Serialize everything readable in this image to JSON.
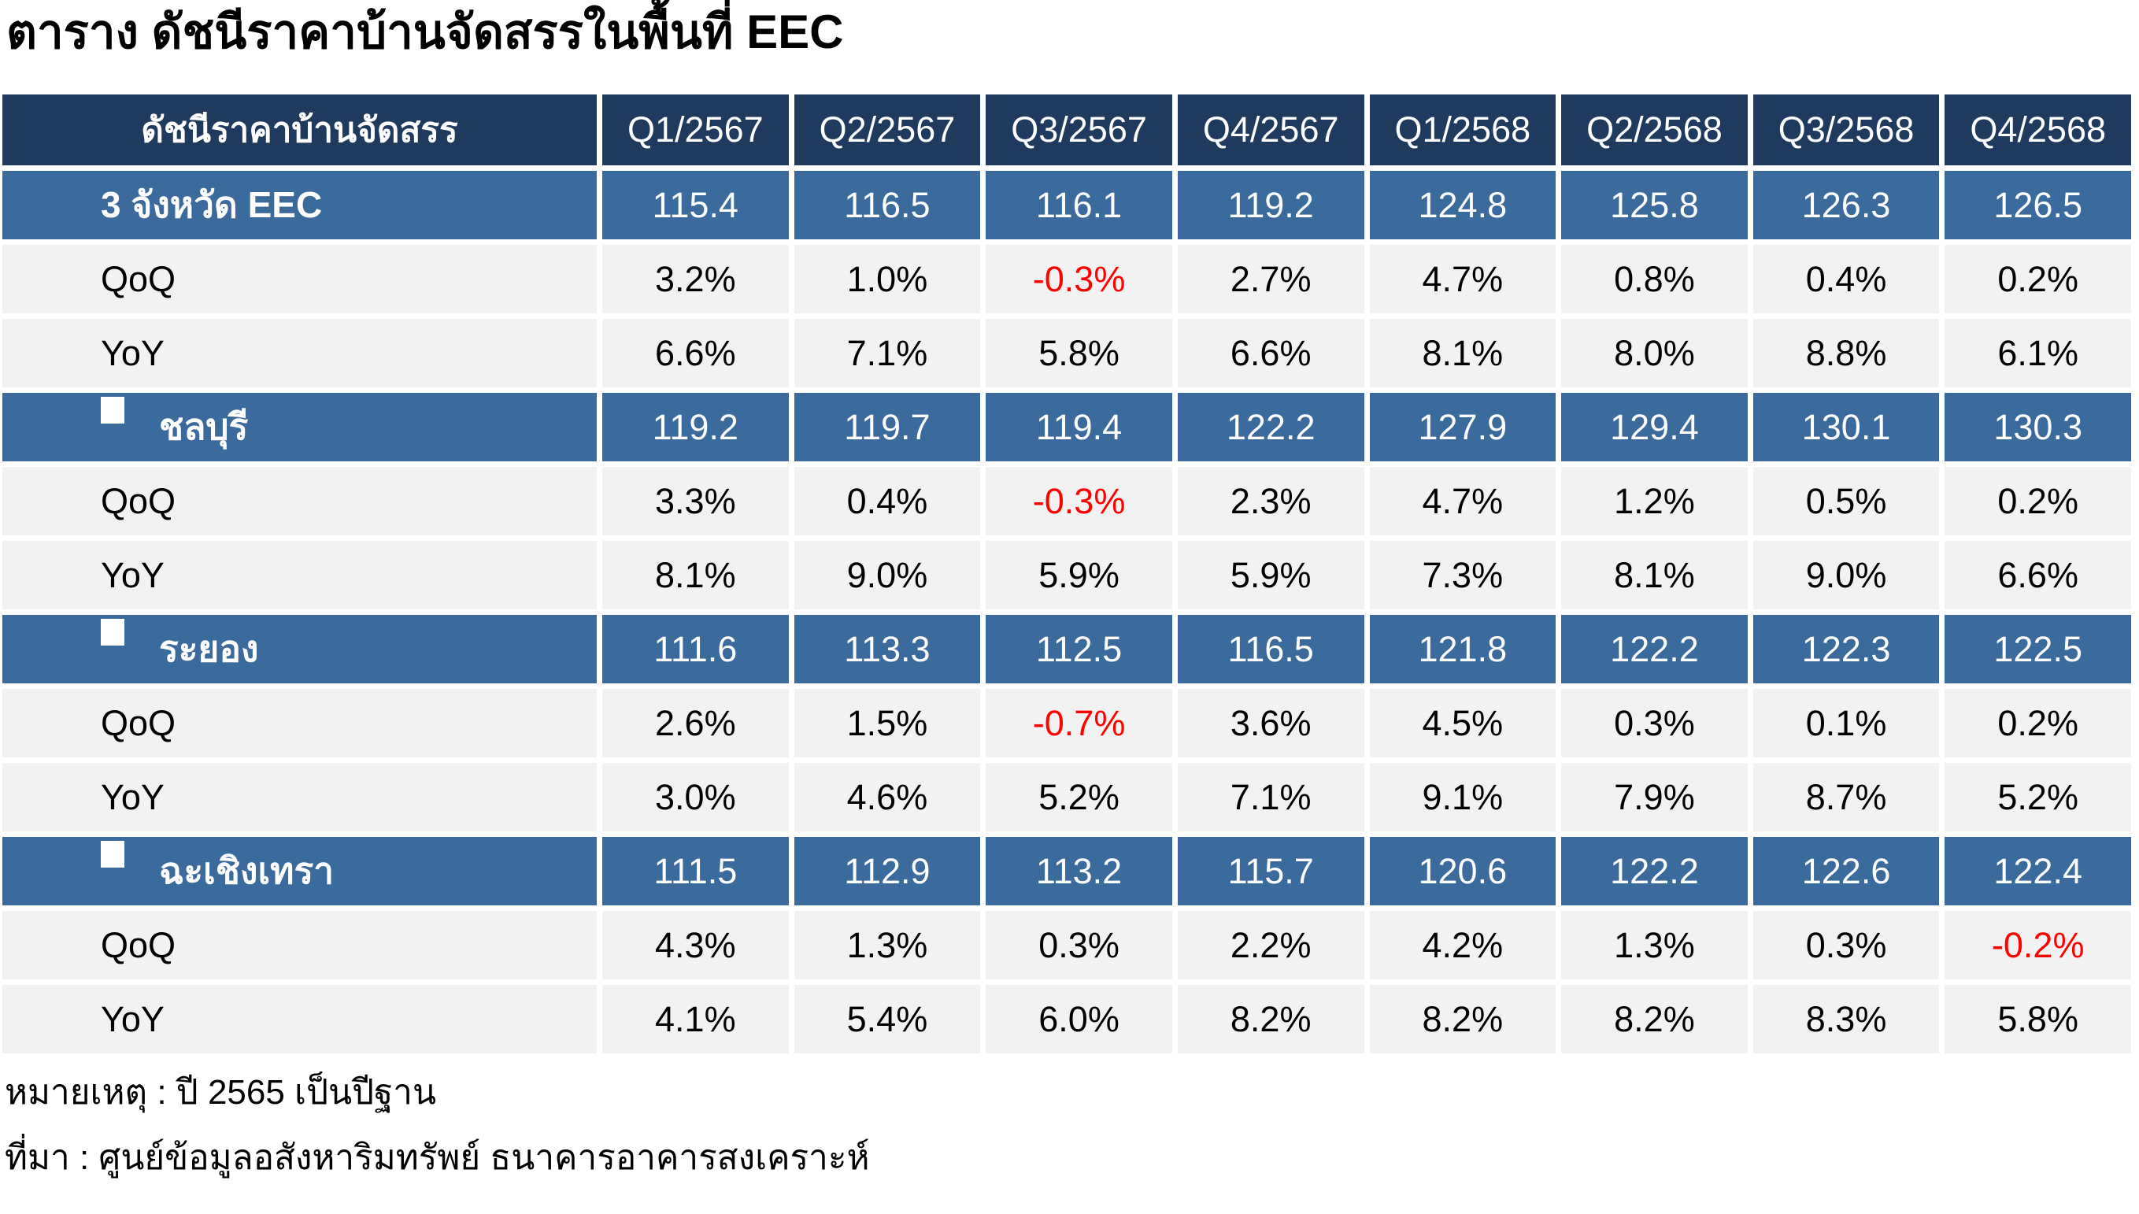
{
  "title": "ตาราง  ดัชนีราคาบ้านจัดสรรในพื้นที่ EEC",
  "table": {
    "header_label": "ดัชนีราคาบ้านจัดสรร",
    "quarters": [
      "Q1/2567",
      "Q2/2567",
      "Q3/2567",
      "Q4/2567",
      "Q1/2568",
      "Q2/2568",
      "Q3/2568",
      "Q4/2568"
    ],
    "qoq_label": "QoQ",
    "yoy_label": "YoY",
    "groups": [
      {
        "name": "3 จังหวัด EEC",
        "bullet": false,
        "index": [
          "115.4",
          "116.5",
          "116.1",
          "119.2",
          "124.8",
          "125.8",
          "126.3",
          "126.5"
        ],
        "qoq": [
          "3.2%",
          "1.0%",
          "-0.3%",
          "2.7%",
          "4.7%",
          "0.8%",
          "0.4%",
          "0.2%"
        ],
        "yoy": [
          "6.6%",
          "7.1%",
          "5.8%",
          "6.6%",
          "8.1%",
          "8.0%",
          "8.8%",
          "6.1%"
        ]
      },
      {
        "name": "ชลบุรี",
        "bullet": true,
        "index": [
          "119.2",
          "119.7",
          "119.4",
          "122.2",
          "127.9",
          "129.4",
          "130.1",
          "130.3"
        ],
        "qoq": [
          "3.3%",
          "0.4%",
          "-0.3%",
          "2.3%",
          "4.7%",
          "1.2%",
          "0.5%",
          "0.2%"
        ],
        "yoy": [
          "8.1%",
          "9.0%",
          "5.9%",
          "5.9%",
          "7.3%",
          "8.1%",
          "9.0%",
          "6.6%"
        ]
      },
      {
        "name": "ระยอง",
        "bullet": true,
        "index": [
          "111.6",
          "113.3",
          "112.5",
          "116.5",
          "121.8",
          "122.2",
          "122.3",
          "122.5"
        ],
        "qoq": [
          "2.6%",
          "1.5%",
          "-0.7%",
          "3.6%",
          "4.5%",
          "0.3%",
          "0.1%",
          "0.2%"
        ],
        "yoy": [
          "3.0%",
          "4.6%",
          "5.2%",
          "7.1%",
          "9.1%",
          "7.9%",
          "8.7%",
          "5.2%"
        ]
      },
      {
        "name": "ฉะเชิงเทรา",
        "bullet": true,
        "index": [
          "111.5",
          "112.9",
          "113.2",
          "115.7",
          "120.6",
          "122.2",
          "122.6",
          "122.4"
        ],
        "qoq": [
          "4.3%",
          "1.3%",
          "0.3%",
          "2.2%",
          "4.2%",
          "1.3%",
          "0.3%",
          "-0.2%"
        ],
        "yoy": [
          "4.1%",
          "5.4%",
          "6.0%",
          "8.2%",
          "8.2%",
          "8.2%",
          "8.3%",
          "5.8%"
        ]
      }
    ]
  },
  "footnotes": [
    "หมายเหตุ : ปี 2565 เป็นปีฐาน",
    "ที่มา : ศูนย์ข้อมูลอสังหาริมทรัพย์ ธนาคารอาคารสงเคราะห์"
  ],
  "colors": {
    "header_bg": "#1E3A5E",
    "group_bg": "#3B6A9C",
    "stripe_bg": "#F2F2F2",
    "negative": "#FF0000",
    "header_text": "#FFFFFF",
    "body_text": "#000000"
  },
  "chart_data": {
    "type": "table",
    "title": "ตาราง  ดัชนีราคาบ้านจัดสรรในพื้นที่ EEC",
    "categories": [
      "Q1/2567",
      "Q2/2567",
      "Q3/2567",
      "Q4/2567",
      "Q1/2568",
      "Q2/2568",
      "Q3/2568",
      "Q4/2568"
    ],
    "series": [
      {
        "name": "3 จังหวัด EEC",
        "index": [
          115.4,
          116.5,
          116.1,
          119.2,
          124.8,
          125.8,
          126.3,
          126.5
        ],
        "qoq_pct": [
          3.2,
          1.0,
          -0.3,
          2.7,
          4.7,
          0.8,
          0.4,
          0.2
        ],
        "yoy_pct": [
          6.6,
          7.1,
          5.8,
          6.6,
          8.1,
          8.0,
          8.8,
          6.1
        ]
      },
      {
        "name": "ชลบุรี",
        "index": [
          119.2,
          119.7,
          119.4,
          122.2,
          127.9,
          129.4,
          130.1,
          130.3
        ],
        "qoq_pct": [
          3.3,
          0.4,
          -0.3,
          2.3,
          4.7,
          1.2,
          0.5,
          0.2
        ],
        "yoy_pct": [
          8.1,
          9.0,
          5.9,
          5.9,
          7.3,
          8.1,
          9.0,
          6.6
        ]
      },
      {
        "name": "ระยอง",
        "index": [
          111.6,
          113.3,
          112.5,
          116.5,
          121.8,
          122.2,
          122.3,
          122.5
        ],
        "qoq_pct": [
          2.6,
          1.5,
          -0.7,
          3.6,
          4.5,
          0.3,
          0.1,
          0.2
        ],
        "yoy_pct": [
          3.0,
          4.6,
          5.2,
          7.1,
          9.1,
          7.9,
          8.7,
          5.2
        ]
      },
      {
        "name": "ฉะเชิงเทรา",
        "index": [
          111.5,
          112.9,
          113.2,
          115.7,
          120.6,
          122.2,
          122.6,
          122.4
        ],
        "qoq_pct": [
          4.3,
          1.3,
          0.3,
          2.2,
          4.2,
          1.3,
          0.3,
          -0.2
        ],
        "yoy_pct": [
          4.1,
          5.4,
          6.0,
          8.2,
          8.2,
          8.2,
          8.3,
          5.8
        ]
      }
    ],
    "note": "หมายเหตุ : ปี 2565 เป็นปีฐาน",
    "source": "ที่มา : ศูนย์ข้อมูลอสังหาริมทรัพย์ ธนาคารอาคารสงเคราะห์"
  }
}
